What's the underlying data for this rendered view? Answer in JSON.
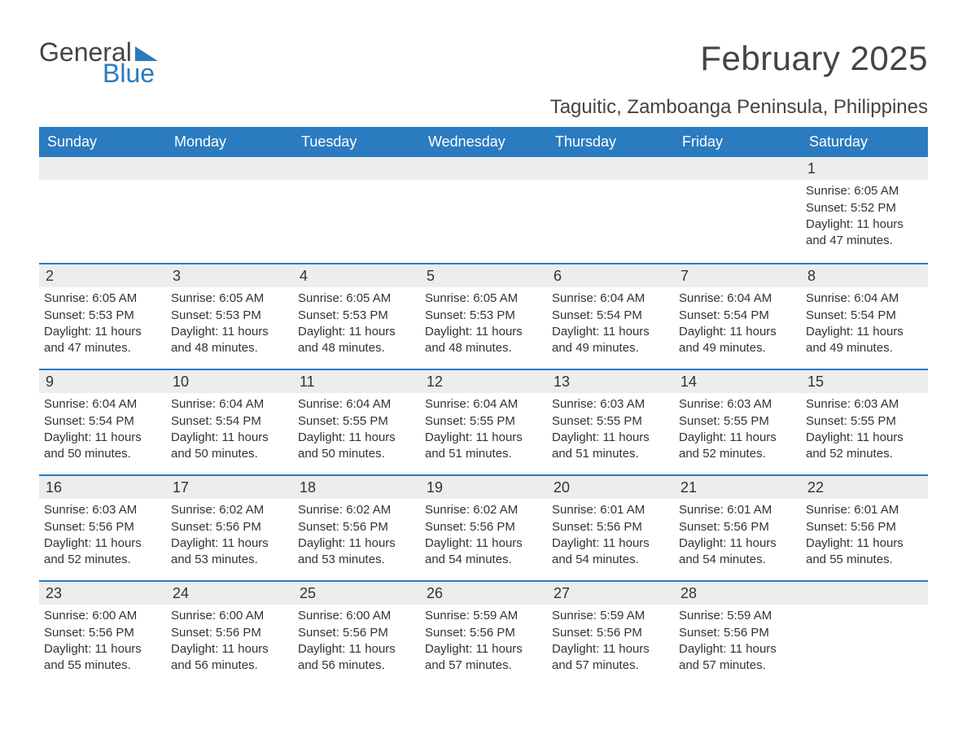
{
  "logo": {
    "word1": "General",
    "word2": "Blue",
    "word1_color": "#444444",
    "word2_color": "#2a7bc0"
  },
  "title": "February 2025",
  "location": "Taguitic, Zamboanga Peninsula, Philippines",
  "colors": {
    "header_bg": "#2a7bc0",
    "header_text": "#ffffff",
    "strip_bg": "#ededed",
    "row_border": "#2a7bc0",
    "body_text": "#333333",
    "page_bg": "#ffffff"
  },
  "typography": {
    "title_fontsize": 42,
    "location_fontsize": 24,
    "dayheader_fontsize": 18,
    "daynum_fontsize": 18,
    "body_fontsize": 15
  },
  "layout": {
    "columns": 7,
    "rows": 5,
    "first_day_column_index": 6
  },
  "day_headers": [
    "Sunday",
    "Monday",
    "Tuesday",
    "Wednesday",
    "Thursday",
    "Friday",
    "Saturday"
  ],
  "days": [
    {
      "n": 1,
      "sunrise": "6:05 AM",
      "sunset": "5:52 PM",
      "daylight": "11 hours and 47 minutes."
    },
    {
      "n": 2,
      "sunrise": "6:05 AM",
      "sunset": "5:53 PM",
      "daylight": "11 hours and 47 minutes."
    },
    {
      "n": 3,
      "sunrise": "6:05 AM",
      "sunset": "5:53 PM",
      "daylight": "11 hours and 48 minutes."
    },
    {
      "n": 4,
      "sunrise": "6:05 AM",
      "sunset": "5:53 PM",
      "daylight": "11 hours and 48 minutes."
    },
    {
      "n": 5,
      "sunrise": "6:05 AM",
      "sunset": "5:53 PM",
      "daylight": "11 hours and 48 minutes."
    },
    {
      "n": 6,
      "sunrise": "6:04 AM",
      "sunset": "5:54 PM",
      "daylight": "11 hours and 49 minutes."
    },
    {
      "n": 7,
      "sunrise": "6:04 AM",
      "sunset": "5:54 PM",
      "daylight": "11 hours and 49 minutes."
    },
    {
      "n": 8,
      "sunrise": "6:04 AM",
      "sunset": "5:54 PM",
      "daylight": "11 hours and 49 minutes."
    },
    {
      "n": 9,
      "sunrise": "6:04 AM",
      "sunset": "5:54 PM",
      "daylight": "11 hours and 50 minutes."
    },
    {
      "n": 10,
      "sunrise": "6:04 AM",
      "sunset": "5:54 PM",
      "daylight": "11 hours and 50 minutes."
    },
    {
      "n": 11,
      "sunrise": "6:04 AM",
      "sunset": "5:55 PM",
      "daylight": "11 hours and 50 minutes."
    },
    {
      "n": 12,
      "sunrise": "6:04 AM",
      "sunset": "5:55 PM",
      "daylight": "11 hours and 51 minutes."
    },
    {
      "n": 13,
      "sunrise": "6:03 AM",
      "sunset": "5:55 PM",
      "daylight": "11 hours and 51 minutes."
    },
    {
      "n": 14,
      "sunrise": "6:03 AM",
      "sunset": "5:55 PM",
      "daylight": "11 hours and 52 minutes."
    },
    {
      "n": 15,
      "sunrise": "6:03 AM",
      "sunset": "5:55 PM",
      "daylight": "11 hours and 52 minutes."
    },
    {
      "n": 16,
      "sunrise": "6:03 AM",
      "sunset": "5:56 PM",
      "daylight": "11 hours and 52 minutes."
    },
    {
      "n": 17,
      "sunrise": "6:02 AM",
      "sunset": "5:56 PM",
      "daylight": "11 hours and 53 minutes."
    },
    {
      "n": 18,
      "sunrise": "6:02 AM",
      "sunset": "5:56 PM",
      "daylight": "11 hours and 53 minutes."
    },
    {
      "n": 19,
      "sunrise": "6:02 AM",
      "sunset": "5:56 PM",
      "daylight": "11 hours and 54 minutes."
    },
    {
      "n": 20,
      "sunrise": "6:01 AM",
      "sunset": "5:56 PM",
      "daylight": "11 hours and 54 minutes."
    },
    {
      "n": 21,
      "sunrise": "6:01 AM",
      "sunset": "5:56 PM",
      "daylight": "11 hours and 54 minutes."
    },
    {
      "n": 22,
      "sunrise": "6:01 AM",
      "sunset": "5:56 PM",
      "daylight": "11 hours and 55 minutes."
    },
    {
      "n": 23,
      "sunrise": "6:00 AM",
      "sunset": "5:56 PM",
      "daylight": "11 hours and 55 minutes."
    },
    {
      "n": 24,
      "sunrise": "6:00 AM",
      "sunset": "5:56 PM",
      "daylight": "11 hours and 56 minutes."
    },
    {
      "n": 25,
      "sunrise": "6:00 AM",
      "sunset": "5:56 PM",
      "daylight": "11 hours and 56 minutes."
    },
    {
      "n": 26,
      "sunrise": "5:59 AM",
      "sunset": "5:56 PM",
      "daylight": "11 hours and 57 minutes."
    },
    {
      "n": 27,
      "sunrise": "5:59 AM",
      "sunset": "5:56 PM",
      "daylight": "11 hours and 57 minutes."
    },
    {
      "n": 28,
      "sunrise": "5:59 AM",
      "sunset": "5:56 PM",
      "daylight": "11 hours and 57 minutes."
    }
  ],
  "labels": {
    "sunrise_prefix": "Sunrise: ",
    "sunset_prefix": "Sunset: ",
    "daylight_prefix": "Daylight: "
  }
}
